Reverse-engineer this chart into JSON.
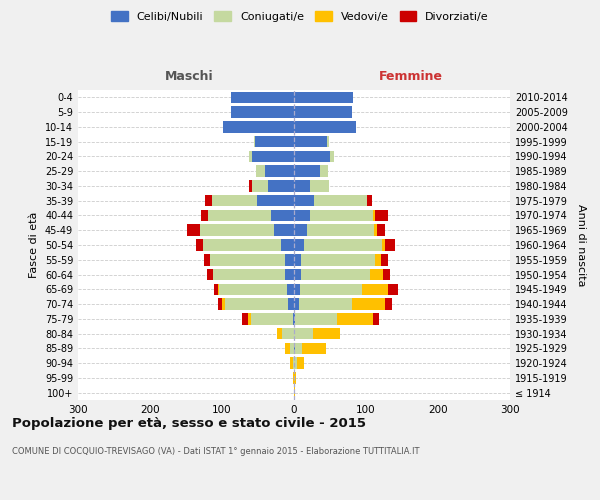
{
  "age_groups": [
    "100+",
    "95-99",
    "90-94",
    "85-89",
    "80-84",
    "75-79",
    "70-74",
    "65-69",
    "60-64",
    "55-59",
    "50-54",
    "45-49",
    "40-44",
    "35-39",
    "30-34",
    "25-29",
    "20-24",
    "15-19",
    "10-14",
    "5-9",
    "0-4"
  ],
  "birth_years": [
    "≤ 1914",
    "1915-1919",
    "1920-1924",
    "1925-1929",
    "1930-1934",
    "1935-1939",
    "1940-1944",
    "1945-1949",
    "1950-1954",
    "1955-1959",
    "1960-1964",
    "1965-1969",
    "1970-1974",
    "1975-1979",
    "1980-1984",
    "1985-1989",
    "1990-1994",
    "1995-1999",
    "2000-2004",
    "2005-2009",
    "2010-2014"
  ],
  "maschi": {
    "celibi": [
      0,
      0,
      0,
      0,
      0,
      2,
      8,
      10,
      12,
      12,
      18,
      28,
      32,
      52,
      36,
      40,
      58,
      54,
      98,
      88,
      88
    ],
    "coniugati": [
      0,
      0,
      2,
      5,
      16,
      58,
      88,
      94,
      100,
      104,
      108,
      102,
      87,
      62,
      23,
      13,
      5,
      2,
      0,
      0,
      0
    ],
    "vedovi": [
      0,
      1,
      3,
      8,
      7,
      4,
      4,
      2,
      1,
      0,
      0,
      0,
      0,
      0,
      0,
      0,
      0,
      0,
      0,
      0,
      0
    ],
    "divorziati": [
      0,
      0,
      0,
      0,
      0,
      8,
      5,
      5,
      8,
      9,
      10,
      18,
      10,
      9,
      4,
      0,
      0,
      0,
      0,
      0,
      0
    ]
  },
  "femmine": {
    "nubili": [
      0,
      0,
      0,
      2,
      0,
      2,
      7,
      8,
      10,
      10,
      14,
      18,
      22,
      28,
      22,
      36,
      50,
      46,
      86,
      80,
      82
    ],
    "coniugate": [
      0,
      0,
      4,
      9,
      26,
      58,
      73,
      86,
      96,
      103,
      108,
      93,
      88,
      73,
      27,
      11,
      5,
      2,
      0,
      0,
      0
    ],
    "vedove": [
      1,
      3,
      10,
      33,
      38,
      50,
      46,
      37,
      17,
      8,
      4,
      4,
      2,
      0,
      0,
      0,
      0,
      0,
      0,
      0,
      0
    ],
    "divorziate": [
      0,
      0,
      0,
      0,
      0,
      8,
      10,
      14,
      10,
      9,
      14,
      12,
      18,
      8,
      0,
      0,
      0,
      0,
      0,
      0,
      0
    ]
  },
  "colors": {
    "celibi": "#4472c4",
    "coniugati": "#c5d9a0",
    "vedovi": "#ffc000",
    "divorziati": "#cc0000"
  },
  "xlim": 300,
  "title": "Popolazione per età, sesso e stato civile - 2015",
  "subtitle": "COMUNE DI COCQUIO-TREVISAGO (VA) - Dati ISTAT 1° gennaio 2015 - Elaborazione TUTTITALIA.IT",
  "ylabel_left": "Fasce di età",
  "ylabel_right": "Anni di nascita",
  "xlabel_maschi": "Maschi",
  "xlabel_femmine": "Femmine",
  "legend_labels": [
    "Celibi/Nubili",
    "Coniugati/e",
    "Vedovi/e",
    "Divorziati/e"
  ],
  "bg_color": "#f0f0f0",
  "plot_bg_color": "#ffffff"
}
